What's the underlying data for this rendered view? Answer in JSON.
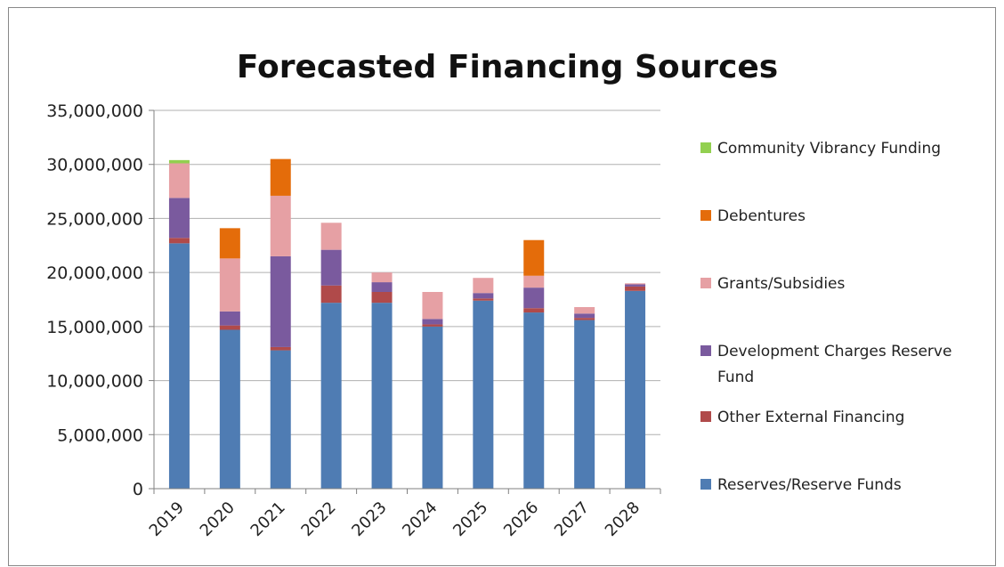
{
  "colors": {
    "community_vibrancy": "#92D050",
    "debentures": "#E46C0A",
    "grants": "#E6A0A4",
    "development_charges": "#7A5A9E",
    "other_external": "#B04A4A",
    "reserves": "#4F7CB3",
    "grid": "#B0B0B0",
    "axis": "#808080"
  },
  "chart_data": {
    "type": "bar",
    "stacked": true,
    "title": "Forecasted Financing Sources",
    "xlabel": "",
    "ylabel": "",
    "ylim": [
      0,
      35000000
    ],
    "ytick_values": [
      0,
      5000000,
      10000000,
      15000000,
      20000000,
      25000000,
      30000000,
      35000000
    ],
    "ytick_labels": [
      "0",
      "5,000,000",
      "10,000,000",
      "15,000,000",
      "20,000,000",
      "25,000,000",
      "30,000,000",
      "35,000,000"
    ],
    "grid": true,
    "legend_position": "right",
    "categories": [
      "2019",
      "2020",
      "2021",
      "2022",
      "2023",
      "2024",
      "2025",
      "2026",
      "2027",
      "2028"
    ],
    "series": [
      {
        "name": "Reserves/Reserve Funds",
        "color_key": "reserves",
        "values": [
          22700000,
          14700000,
          12800000,
          17200000,
          17200000,
          15000000,
          17400000,
          16300000,
          15600000,
          18300000
        ]
      },
      {
        "name": "Other External Financing",
        "color_key": "other_external",
        "values": [
          500000,
          400000,
          300000,
          1600000,
          1000000,
          200000,
          200000,
          400000,
          200000,
          400000
        ]
      },
      {
        "name": "Development Charges Reserve Fund",
        "color_key": "development_charges",
        "values": [
          3700000,
          1300000,
          8400000,
          3300000,
          900000,
          500000,
          500000,
          1900000,
          400000,
          200000
        ]
      },
      {
        "name": "Grants/Subsidies",
        "color_key": "grants",
        "values": [
          3200000,
          4900000,
          5600000,
          2500000,
          900000,
          2500000,
          1400000,
          1100000,
          600000,
          100000
        ]
      },
      {
        "name": "Debentures",
        "color_key": "debentures",
        "values": [
          0,
          2800000,
          3400000,
          0,
          0,
          0,
          0,
          3300000,
          0,
          0
        ]
      },
      {
        "name": "Community Vibrancy Funding",
        "color_key": "community_vibrancy",
        "values": [
          300000,
          0,
          0,
          0,
          0,
          0,
          0,
          0,
          0,
          0
        ]
      }
    ],
    "legend_order": [
      {
        "name": "Community Vibrancy Funding",
        "lines": [
          "Community Vibrancy Funding"
        ],
        "color_key": "community_vibrancy"
      },
      {
        "name": "Debentures",
        "lines": [
          "Debentures"
        ],
        "color_key": "debentures"
      },
      {
        "name": "Grants/Subsidies",
        "lines": [
          "Grants/Subsidies"
        ],
        "color_key": "grants"
      },
      {
        "name": "Development Charges Reserve Fund",
        "lines": [
          "Development Charges Reserve",
          "Fund"
        ],
        "color_key": "development_charges"
      },
      {
        "name": "Other External Financing",
        "lines": [
          "Other External Financing"
        ],
        "color_key": "other_external"
      },
      {
        "name": "Reserves/Reserve Funds",
        "lines": [
          "Reserves/Reserve Funds"
        ],
        "color_key": "reserves"
      }
    ]
  }
}
